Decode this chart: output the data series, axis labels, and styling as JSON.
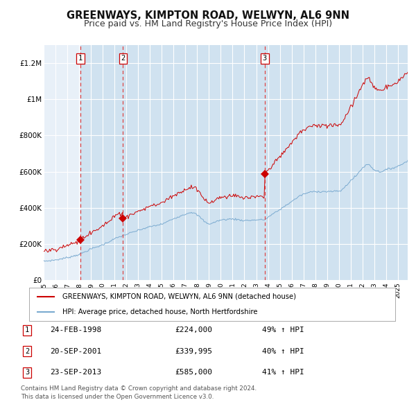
{
  "title": "GREENWAYS, KIMPTON ROAD, WELWYN, AL6 9NN",
  "subtitle": "Price paid vs. HM Land Registry's House Price Index (HPI)",
  "title_fontsize": 10.5,
  "subtitle_fontsize": 9,
  "background_color": "#ffffff",
  "plot_bg_color": "#e8f0f8",
  "shade_color": "#d0e2f0",
  "hatch_color": "#c0c8d0",
  "grid_color": "#ffffff",
  "ylim": [
    0,
    1300000
  ],
  "xlim_start": 1995.0,
  "xlim_end": 2025.83,
  "yticks": [
    0,
    200000,
    400000,
    600000,
    800000,
    1000000,
    1200000
  ],
  "ytick_labels": [
    "£0",
    "£200K",
    "£400K",
    "£600K",
    "£800K",
    "£1M",
    "£1.2M"
  ],
  "xticks": [
    1995,
    1996,
    1997,
    1998,
    1999,
    2000,
    2001,
    2002,
    2003,
    2004,
    2005,
    2006,
    2007,
    2008,
    2009,
    2010,
    2011,
    2012,
    2013,
    2014,
    2015,
    2016,
    2017,
    2018,
    2019,
    2020,
    2021,
    2022,
    2023,
    2024,
    2025
  ],
  "sale_dates": [
    1998.12,
    2001.72,
    2013.73
  ],
  "sale_prices": [
    224000,
    339995,
    585000
  ],
  "sale_labels": [
    "1",
    "2",
    "3"
  ],
  "sale_color": "#cc0000",
  "hpi_color": "#7aaad0",
  "red_line_color": "#cc0000",
  "vline_color": "#dd4444",
  "legend_entries": [
    "GREENWAYS, KIMPTON ROAD, WELWYN, AL6 9NN (detached house)",
    "HPI: Average price, detached house, North Hertfordshire"
  ],
  "footer_text": "Contains HM Land Registry data © Crown copyright and database right 2024.\nThis data is licensed under the Open Government Licence v3.0.",
  "table_rows": [
    [
      "1",
      "24-FEB-1998",
      "£224,000",
      "49% ↑ HPI"
    ],
    [
      "2",
      "20-SEP-2001",
      "£339,995",
      "40% ↑ HPI"
    ],
    [
      "3",
      "23-SEP-2013",
      "£585,000",
      "41% ↑ HPI"
    ]
  ]
}
